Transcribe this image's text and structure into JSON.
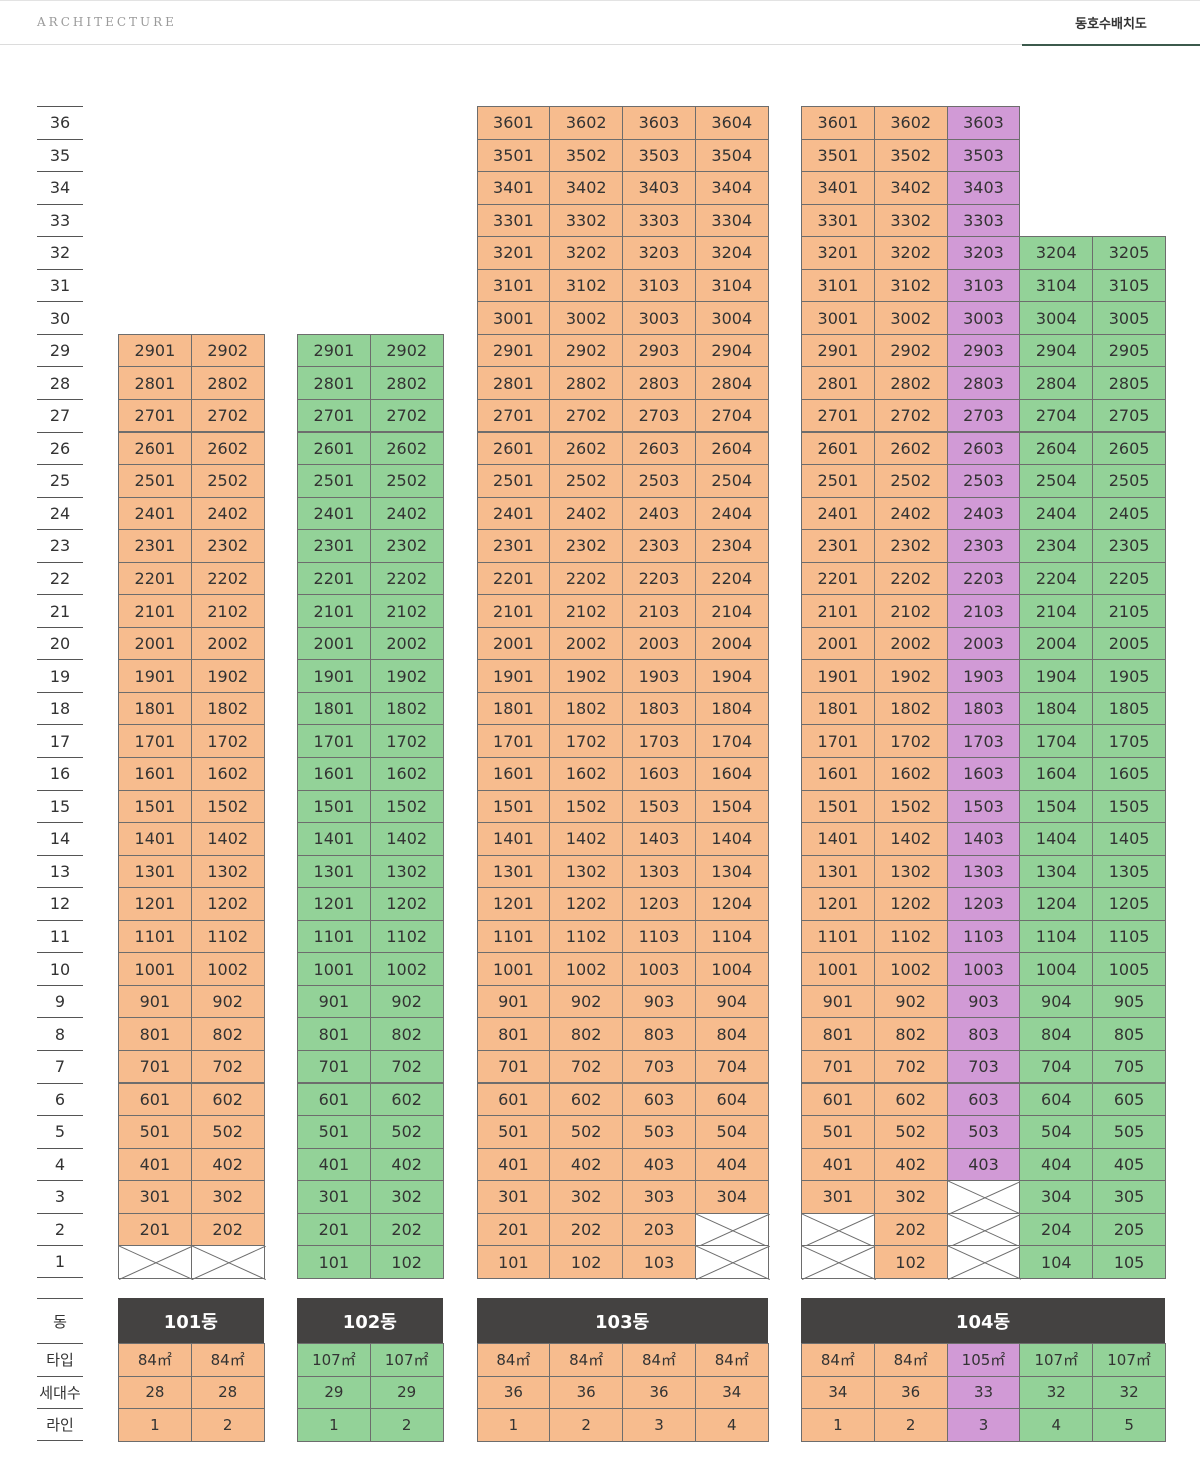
{
  "header": {
    "brand": "ARCHITECTURE",
    "tab": "동호수배치도"
  },
  "colors": {
    "84": "#f7bc8e",
    "105": "#d19ad6",
    "107": "#93d298",
    "grid": "#6d6d6d",
    "dong_header": "#444241"
  },
  "labels": {
    "dong": "동",
    "type": "타입",
    "units": "세대수",
    "line": "라인"
  },
  "floors": [
    36,
    35,
    34,
    33,
    32,
    31,
    30,
    29,
    28,
    27,
    26,
    25,
    24,
    23,
    22,
    21,
    20,
    19,
    18,
    17,
    16,
    15,
    14,
    13,
    12,
    11,
    10,
    9,
    8,
    7,
    6,
    5,
    4,
    3,
    2,
    1
  ],
  "buildings": [
    {
      "name": "101동",
      "lines": [
        {
          "line": 1,
          "type": "84㎡",
          "type_key": "84",
          "units": 28,
          "top": 29,
          "empty_floors": [
            1
          ]
        },
        {
          "line": 2,
          "type": "84㎡",
          "type_key": "84",
          "units": 28,
          "top": 29,
          "empty_floors": [
            1
          ]
        }
      ]
    },
    {
      "name": "102동",
      "lines": [
        {
          "line": 1,
          "type": "107㎡",
          "type_key": "107",
          "units": 29,
          "top": 29,
          "empty_floors": []
        },
        {
          "line": 2,
          "type": "107㎡",
          "type_key": "107",
          "units": 29,
          "top": 29,
          "empty_floors": []
        }
      ]
    },
    {
      "name": "103동",
      "lines": [
        {
          "line": 1,
          "type": "84㎡",
          "type_key": "84",
          "units": 36,
          "top": 36,
          "empty_floors": []
        },
        {
          "line": 2,
          "type": "84㎡",
          "type_key": "84",
          "units": 36,
          "top": 36,
          "empty_floors": []
        },
        {
          "line": 3,
          "type": "84㎡",
          "type_key": "84",
          "units": 36,
          "top": 36,
          "empty_floors": []
        },
        {
          "line": 4,
          "type": "84㎡",
          "type_key": "84",
          "units": 34,
          "top": 36,
          "empty_floors": [
            1,
            2
          ]
        }
      ]
    },
    {
      "name": "104동",
      "lines": [
        {
          "line": 1,
          "type": "84㎡",
          "type_key": "84",
          "units": 34,
          "top": 36,
          "empty_floors": [
            1,
            2
          ]
        },
        {
          "line": 2,
          "type": "84㎡",
          "type_key": "84",
          "units": 36,
          "top": 36,
          "empty_floors": []
        },
        {
          "line": 3,
          "type": "105㎡",
          "type_key": "105",
          "units": 33,
          "top": 36,
          "empty_floors": [
            1,
            2,
            3
          ]
        },
        {
          "line": 4,
          "type": "107㎡",
          "type_key": "107",
          "units": 32,
          "top": 32,
          "empty_floors": []
        },
        {
          "line": 5,
          "type": "107㎡",
          "type_key": "107",
          "units": 32,
          "top": 32,
          "empty_floors": []
        }
      ]
    }
  ]
}
